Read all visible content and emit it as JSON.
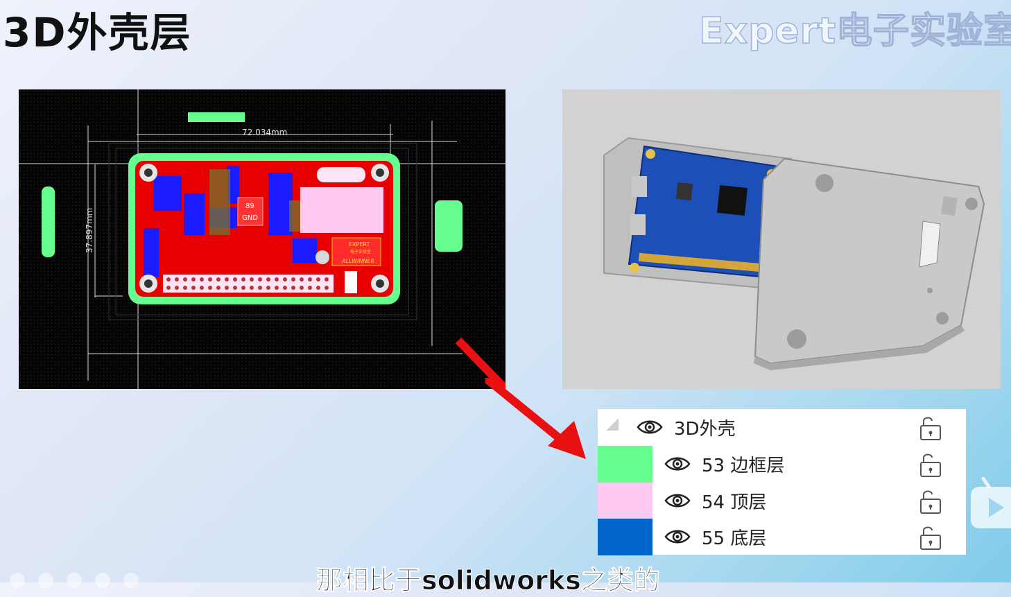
{
  "page": {
    "title": "3D外壳层",
    "watermark": "Expert电子实验室",
    "subtitle": "那相比于solidworks之类的"
  },
  "pcb_view": {
    "dimension_horizontal": "72.034mm",
    "dimension_vertical": "37.897mm",
    "silk_gnd": "GND",
    "silk_89": "89",
    "logo_text_1": "EXPERT",
    "logo_text_2": "电子实验室",
    "logo_text_3": "ALLWINNER"
  },
  "layers": {
    "group": {
      "label": "3D外壳",
      "icon": "eye-icon",
      "lock_icon": "unlock-icon"
    },
    "items": [
      {
        "label": "53 边框层",
        "color": "#66ff8f"
      },
      {
        "label": "54 顶层",
        "color": "#ffc8f0"
      },
      {
        "label": "55 底层",
        "color": "#0066cc"
      }
    ]
  },
  "colors": {
    "board_outline": "#66ff8f",
    "top_copper": "#ff0000",
    "bottom_copper": "#0000ff",
    "pcb_blue": "#1d4fb8",
    "arrow": "#e81010"
  }
}
